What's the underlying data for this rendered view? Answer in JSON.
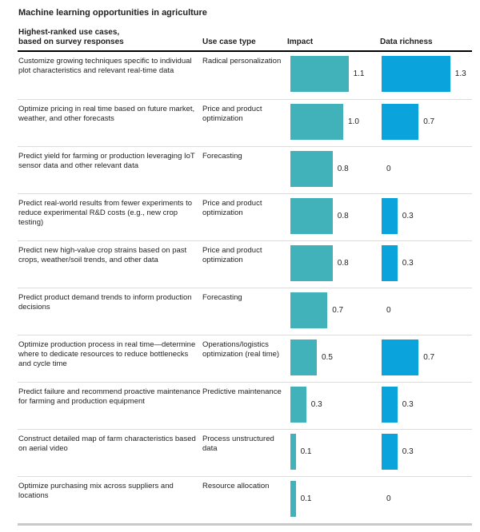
{
  "title": "Machine learning opportunities in agriculture",
  "columns": {
    "use_case_line1": "Highest-ranked use cases,",
    "use_case_line2": "based on survey responses",
    "type": "Use case type",
    "impact": "Impact",
    "data_richness": "Data richness"
  },
  "colors": {
    "impact_bar": "#41b2b9",
    "data_bar": "#0ba3db",
    "header_rule": "#000000",
    "row_rule": "#dcdcdc",
    "bottom_rule": "#c8c8c8"
  },
  "rows": [
    {
      "use_case": "Customize growing techniques specific to individual plot characteristics and relevant real-time data",
      "type": "Radical personalization",
      "impact": 1.1,
      "impact_label": "1.1",
      "data_richness": 1.3,
      "data_richness_label": "1.3"
    },
    {
      "use_case": "Optimize pricing in real time based on future market, weather, and other forecasts",
      "type": "Price and product optimization",
      "impact": 1.0,
      "impact_label": "1.0",
      "data_richness": 0.7,
      "data_richness_label": "0.7"
    },
    {
      "use_case": "Predict yield for farming or production leveraging IoT sensor data and other relevant data",
      "type": "Forecasting",
      "impact": 0.8,
      "impact_label": "0.8",
      "data_richness": 0,
      "data_richness_label": "0"
    },
    {
      "use_case": "Predict real-world results from fewer experiments to reduce experimental R&D costs (e.g., new crop testing)",
      "type": "Price and product optimization",
      "impact": 0.8,
      "impact_label": "0.8",
      "data_richness": 0.3,
      "data_richness_label": "0.3"
    },
    {
      "use_case": "Predict new high-value crop strains based on past crops, weather/soil trends, and other data",
      "type": "Price and product optimization",
      "impact": 0.8,
      "impact_label": "0.8",
      "data_richness": 0.3,
      "data_richness_label": "0.3"
    },
    {
      "use_case": "Predict product demand trends to inform production decisions",
      "type": "Forecasting",
      "impact": 0.7,
      "impact_label": "0.7",
      "data_richness": 0,
      "data_richness_label": "0"
    },
    {
      "use_case": "Optimize production process in real time—determine where to dedicate resources to reduce bottlenecks and cycle time",
      "type": "Operations/logistics optimization (real time)",
      "impact": 0.5,
      "impact_label": "0.5",
      "data_richness": 0.7,
      "data_richness_label": "0.7"
    },
    {
      "use_case": "Predict failure and recommend proactive maintenance for farming and production equipment",
      "type": "Predictive maintenance",
      "impact": 0.3,
      "impact_label": "0.3",
      "data_richness": 0.3,
      "data_richness_label": "0.3"
    },
    {
      "use_case": "Construct detailed map of farm characteristics based on aerial video",
      "type": "Process unstructured data",
      "impact": 0.1,
      "impact_label": "0.1",
      "data_richness": 0.3,
      "data_richness_label": "0.3"
    },
    {
      "use_case": "Optimize purchasing mix across suppliers and locations",
      "type": "Resource allocation",
      "impact": 0.1,
      "impact_label": "0.1",
      "data_richness": 0,
      "data_richness_label": "0"
    }
  ],
  "chart_data": {
    "type": "bar",
    "orientation": "horizontal",
    "title": "Machine learning opportunities in agriculture",
    "xlabel": "",
    "ylabel": "Highest-ranked use cases, based on survey responses",
    "xlim": [
      0,
      1.4
    ],
    "grid": false,
    "legend_position": "column-headers",
    "categories": [
      "Customize growing techniques specific to individual plot characteristics and relevant real-time data",
      "Optimize pricing in real time based on future market, weather, and other forecasts",
      "Predict yield for farming or production leveraging IoT sensor data and other relevant data",
      "Predict real-world results from fewer experiments to reduce experimental R&D costs (e.g., new crop testing)",
      "Predict new high-value crop strains based on past crops, weather/soil trends, and other data",
      "Predict product demand trends to inform production decisions",
      "Optimize production process in real time—determine where to dedicate resources to reduce bottlenecks and cycle time",
      "Predict failure and recommend proactive maintenance for farming and production equipment",
      "Construct detailed map of farm characteristics based on aerial video",
      "Optimize purchasing mix across suppliers and locations"
    ],
    "use_case_types": [
      "Radical personalization",
      "Price and product optimization",
      "Forecasting",
      "Price and product optimization",
      "Price and product optimization",
      "Forecasting",
      "Operations/logistics optimization (real time)",
      "Predictive maintenance",
      "Process unstructured data",
      "Resource allocation"
    ],
    "series": [
      {
        "name": "Impact",
        "color": "#41b2b9",
        "values": [
          1.1,
          1.0,
          0.8,
          0.8,
          0.8,
          0.7,
          0.5,
          0.3,
          0.1,
          0.1
        ]
      },
      {
        "name": "Data richness",
        "color": "#0ba3db",
        "values": [
          1.3,
          0.7,
          0,
          0.3,
          0.3,
          0,
          0.7,
          0.3,
          0.3,
          0
        ]
      }
    ]
  }
}
